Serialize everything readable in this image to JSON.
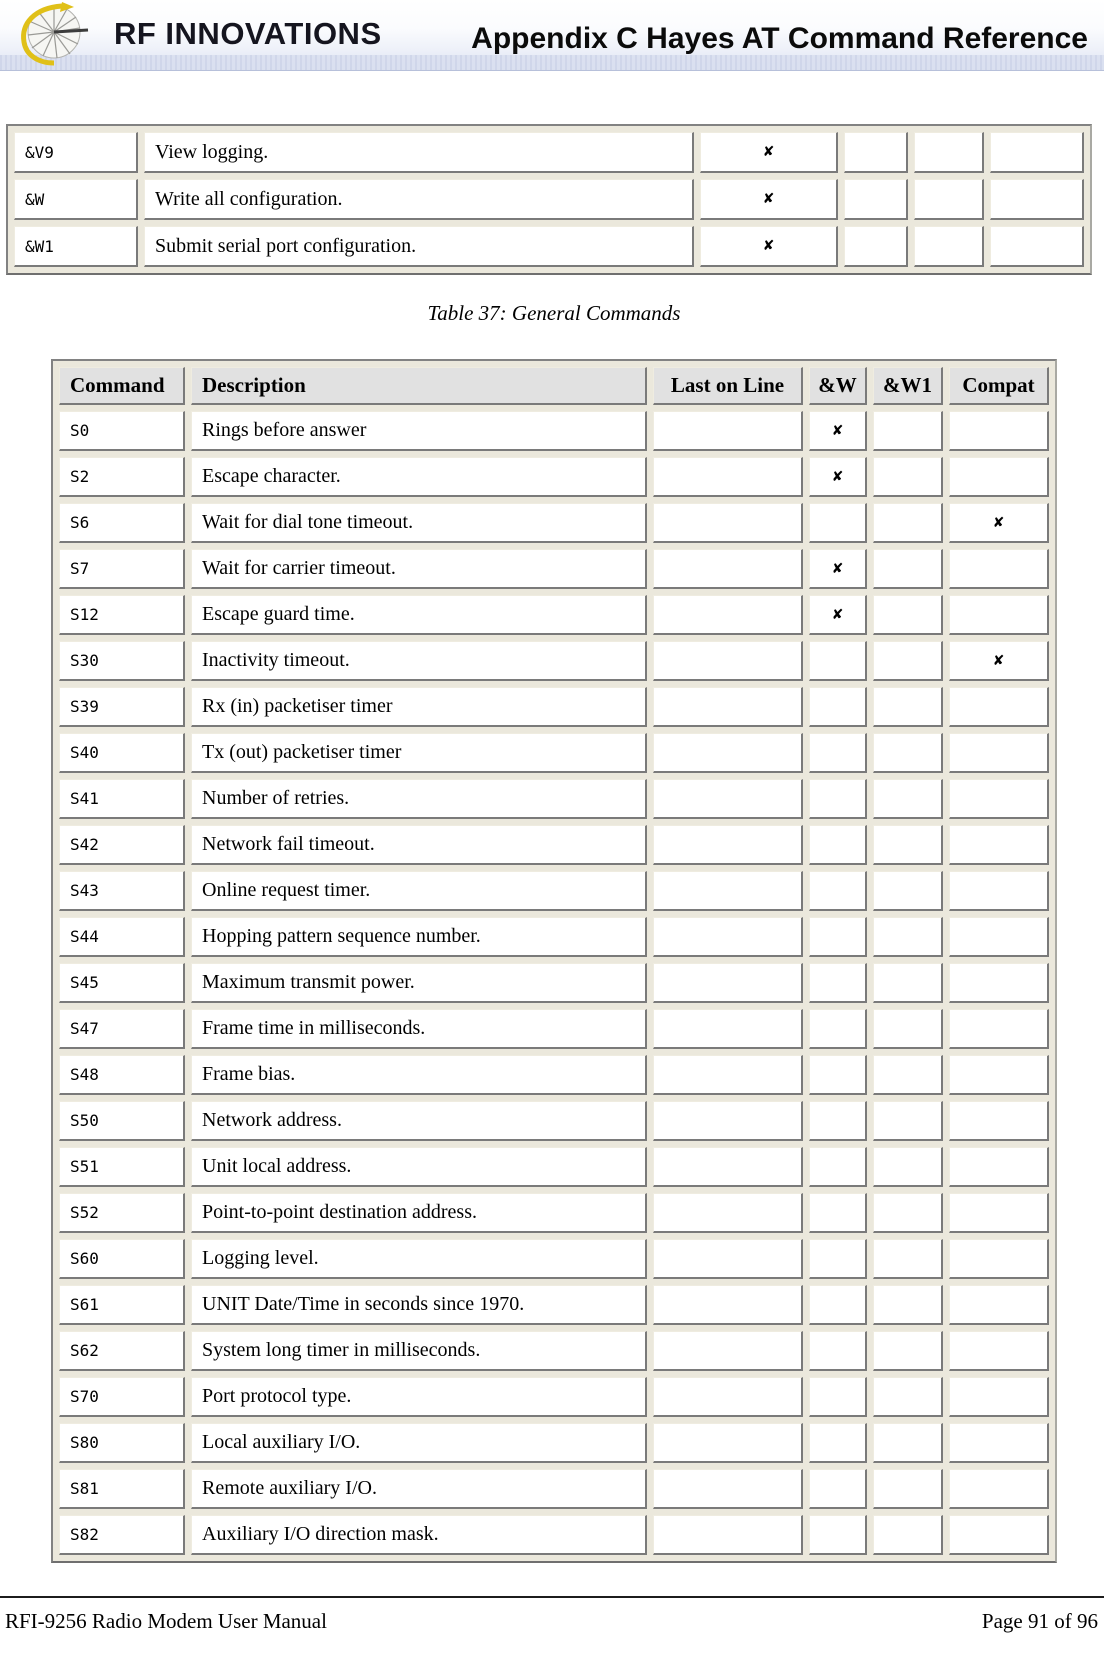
{
  "header": {
    "logo_text": "RF INNOVATIONS",
    "logo_icon": "fan-swoosh-icon",
    "title": "Appendix C Hayes AT Command Reference"
  },
  "tables": {
    "top": {
      "rows": [
        [
          "&V9",
          "View logging.",
          "✘",
          "",
          "",
          ""
        ],
        [
          "&W",
          "Write all configuration.",
          "✘",
          "",
          "",
          ""
        ],
        [
          "&W1",
          "Submit serial port configuration.",
          "✘",
          "",
          "",
          ""
        ]
      ]
    },
    "caption": "Table 37: General Commands",
    "main": {
      "headers": [
        "Command",
        "Description",
        "Last on Line",
        "&W",
        "&W1",
        "Compat"
      ],
      "rows": [
        [
          "S0",
          "Rings before answer",
          "",
          "✘",
          "",
          ""
        ],
        [
          "S2",
          "Escape character.",
          "",
          "✘",
          "",
          ""
        ],
        [
          "S6",
          "Wait for dial tone timeout.",
          "",
          "",
          "",
          "✘"
        ],
        [
          "S7",
          "Wait for carrier timeout.",
          "",
          "✘",
          "",
          ""
        ],
        [
          "S12",
          "Escape guard time.",
          "",
          "✘",
          "",
          ""
        ],
        [
          "S30",
          "Inactivity timeout.",
          "",
          "",
          "",
          "✘"
        ],
        [
          "S39",
          "Rx (in) packetiser timer",
          "",
          "",
          "",
          ""
        ],
        [
          "S40",
          "Tx (out) packetiser timer",
          "",
          "",
          "",
          ""
        ],
        [
          "S41",
          "Number of retries.",
          "",
          "",
          "",
          ""
        ],
        [
          "S42",
          "Network fail timeout.",
          "",
          "",
          "",
          ""
        ],
        [
          "S43",
          "Online request timer.",
          "",
          "",
          "",
          ""
        ],
        [
          "S44",
          "Hopping pattern sequence number.",
          "",
          "",
          "",
          ""
        ],
        [
          "S45",
          "Maximum transmit power.",
          "",
          "",
          "",
          ""
        ],
        [
          "S47",
          "Frame time in milliseconds.",
          "",
          "",
          "",
          ""
        ],
        [
          "S48",
          "Frame bias.",
          "",
          "",
          "",
          ""
        ],
        [
          "S50",
          "Network address.",
          "",
          "",
          "",
          ""
        ],
        [
          "S51",
          "Unit local address.",
          "",
          "",
          "",
          ""
        ],
        [
          "S52",
          "Point-to-point destination address.",
          "",
          "",
          "",
          ""
        ],
        [
          "S60",
          "Logging level.",
          "",
          "",
          "",
          ""
        ],
        [
          "S61",
          "UNIT Date/Time in seconds since 1970.",
          "",
          "",
          "",
          ""
        ],
        [
          "S62",
          "System long timer in milliseconds.",
          "",
          "",
          "",
          ""
        ],
        [
          "S70",
          "Port protocol type.",
          "",
          "",
          "",
          ""
        ],
        [
          "S80",
          "Local auxiliary I/O.",
          "",
          "",
          "",
          ""
        ],
        [
          "S81",
          "Remote auxiliary I/O.",
          "",
          "",
          "",
          ""
        ],
        [
          "S82",
          "Auxiliary I/O direction mask.",
          "",
          "",
          "",
          ""
        ]
      ]
    }
  },
  "footer": {
    "left": "RFI-9256 Radio Modem User Manual",
    "right": "Page 91 of 96"
  },
  "colors": {
    "banner_band": "#ccd3e8",
    "table_gap": "#ebe8dc",
    "header_cell_bg": "#e1e1e1",
    "cell_border_dark": "#7a7a7a"
  }
}
